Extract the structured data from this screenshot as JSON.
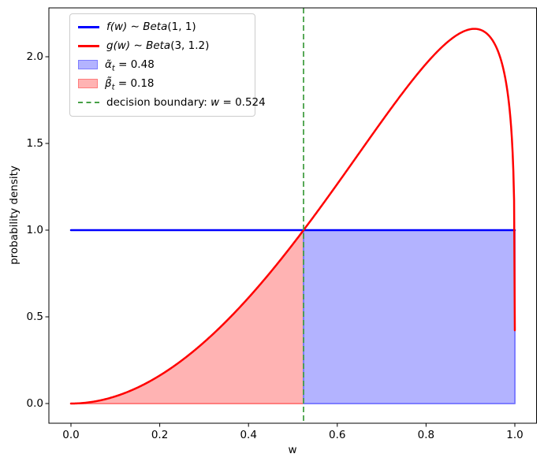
{
  "chart_data": {
    "type": "line",
    "title": "",
    "xlabel": "w",
    "ylabel": "probability density",
    "xlim": [
      -0.05,
      1.05
    ],
    "ylim": [
      -0.108,
      2.269
    ],
    "xticks": [
      0,
      0.2,
      0.4,
      0.6,
      0.8,
      1.0
    ],
    "yticks": [
      0,
      0.5,
      1.0,
      1.5,
      2.0
    ],
    "xtick_labels": [
      "0.0",
      "0.2",
      "0.4",
      "0.6",
      "0.8",
      "1.0"
    ],
    "ytick_labels": [
      "0.0",
      "0.5",
      "1.0",
      "1.5",
      "2.0"
    ],
    "grid": false,
    "legend_position": "upper left",
    "series": [
      {
        "name": "f(w) ~ Beta(1, 1)",
        "distribution": "beta",
        "params": [
          1,
          1
        ],
        "color": "#0000ff",
        "linewidth": 2.5,
        "x_range": [
          0,
          1
        ],
        "constant_value": 1.0
      },
      {
        "name": "g(w) ~ Beta(3, 1.2)",
        "distribution": "beta",
        "params": [
          3,
          1.2
        ],
        "color": "#ff0000",
        "linewidth": 2.5,
        "x_range": [
          0,
          1
        ],
        "peak_x": 0.909,
        "peak_y": 2.16,
        "value_at_right_edge": 0.42
      }
    ],
    "regions": [
      {
        "name": "beta-region",
        "value": 0.18,
        "x_range": [
          0,
          0.524
        ],
        "under_series": 1,
        "fill": "#ffb3b3",
        "edge": "#ff7d7d"
      },
      {
        "name": "alpha-region",
        "value": 0.48,
        "x_range": [
          0.524,
          1.0
        ],
        "under_series": 0,
        "fill": "#b3b3ff",
        "edge": "#7d7dff"
      }
    ],
    "decision_boundary": {
      "w": 0.524,
      "color": "#46a046",
      "linestyle": "dashed",
      "label": "decision boundary: w = 0.524"
    }
  },
  "legend": {
    "items": [
      {
        "kind": "line",
        "color": "#0000ff",
        "fn": "f(w)",
        "mid": " ∼ ",
        "dist": "Beta",
        "args": "(1, 1)"
      },
      {
        "kind": "line",
        "color": "#ff0000",
        "fn": "g(w)",
        "mid": " ∼ ",
        "dist": "Beta",
        "args": "(3, 1.2)"
      },
      {
        "kind": "patch",
        "fill": "#b3b3ff",
        "edge": "#7d7dff",
        "sym": "α̃",
        "sub": "t",
        "eq": " = 0.48"
      },
      {
        "kind": "patch",
        "fill": "#ffb3b3",
        "edge": "#ff7d7d",
        "sym": "β̃",
        "sub": "t",
        "eq": " = 0.18"
      },
      {
        "kind": "dash",
        "color": "#46a046",
        "pre": "decision boundary: ",
        "var": "w",
        "eq": " = 0.524"
      }
    ]
  }
}
